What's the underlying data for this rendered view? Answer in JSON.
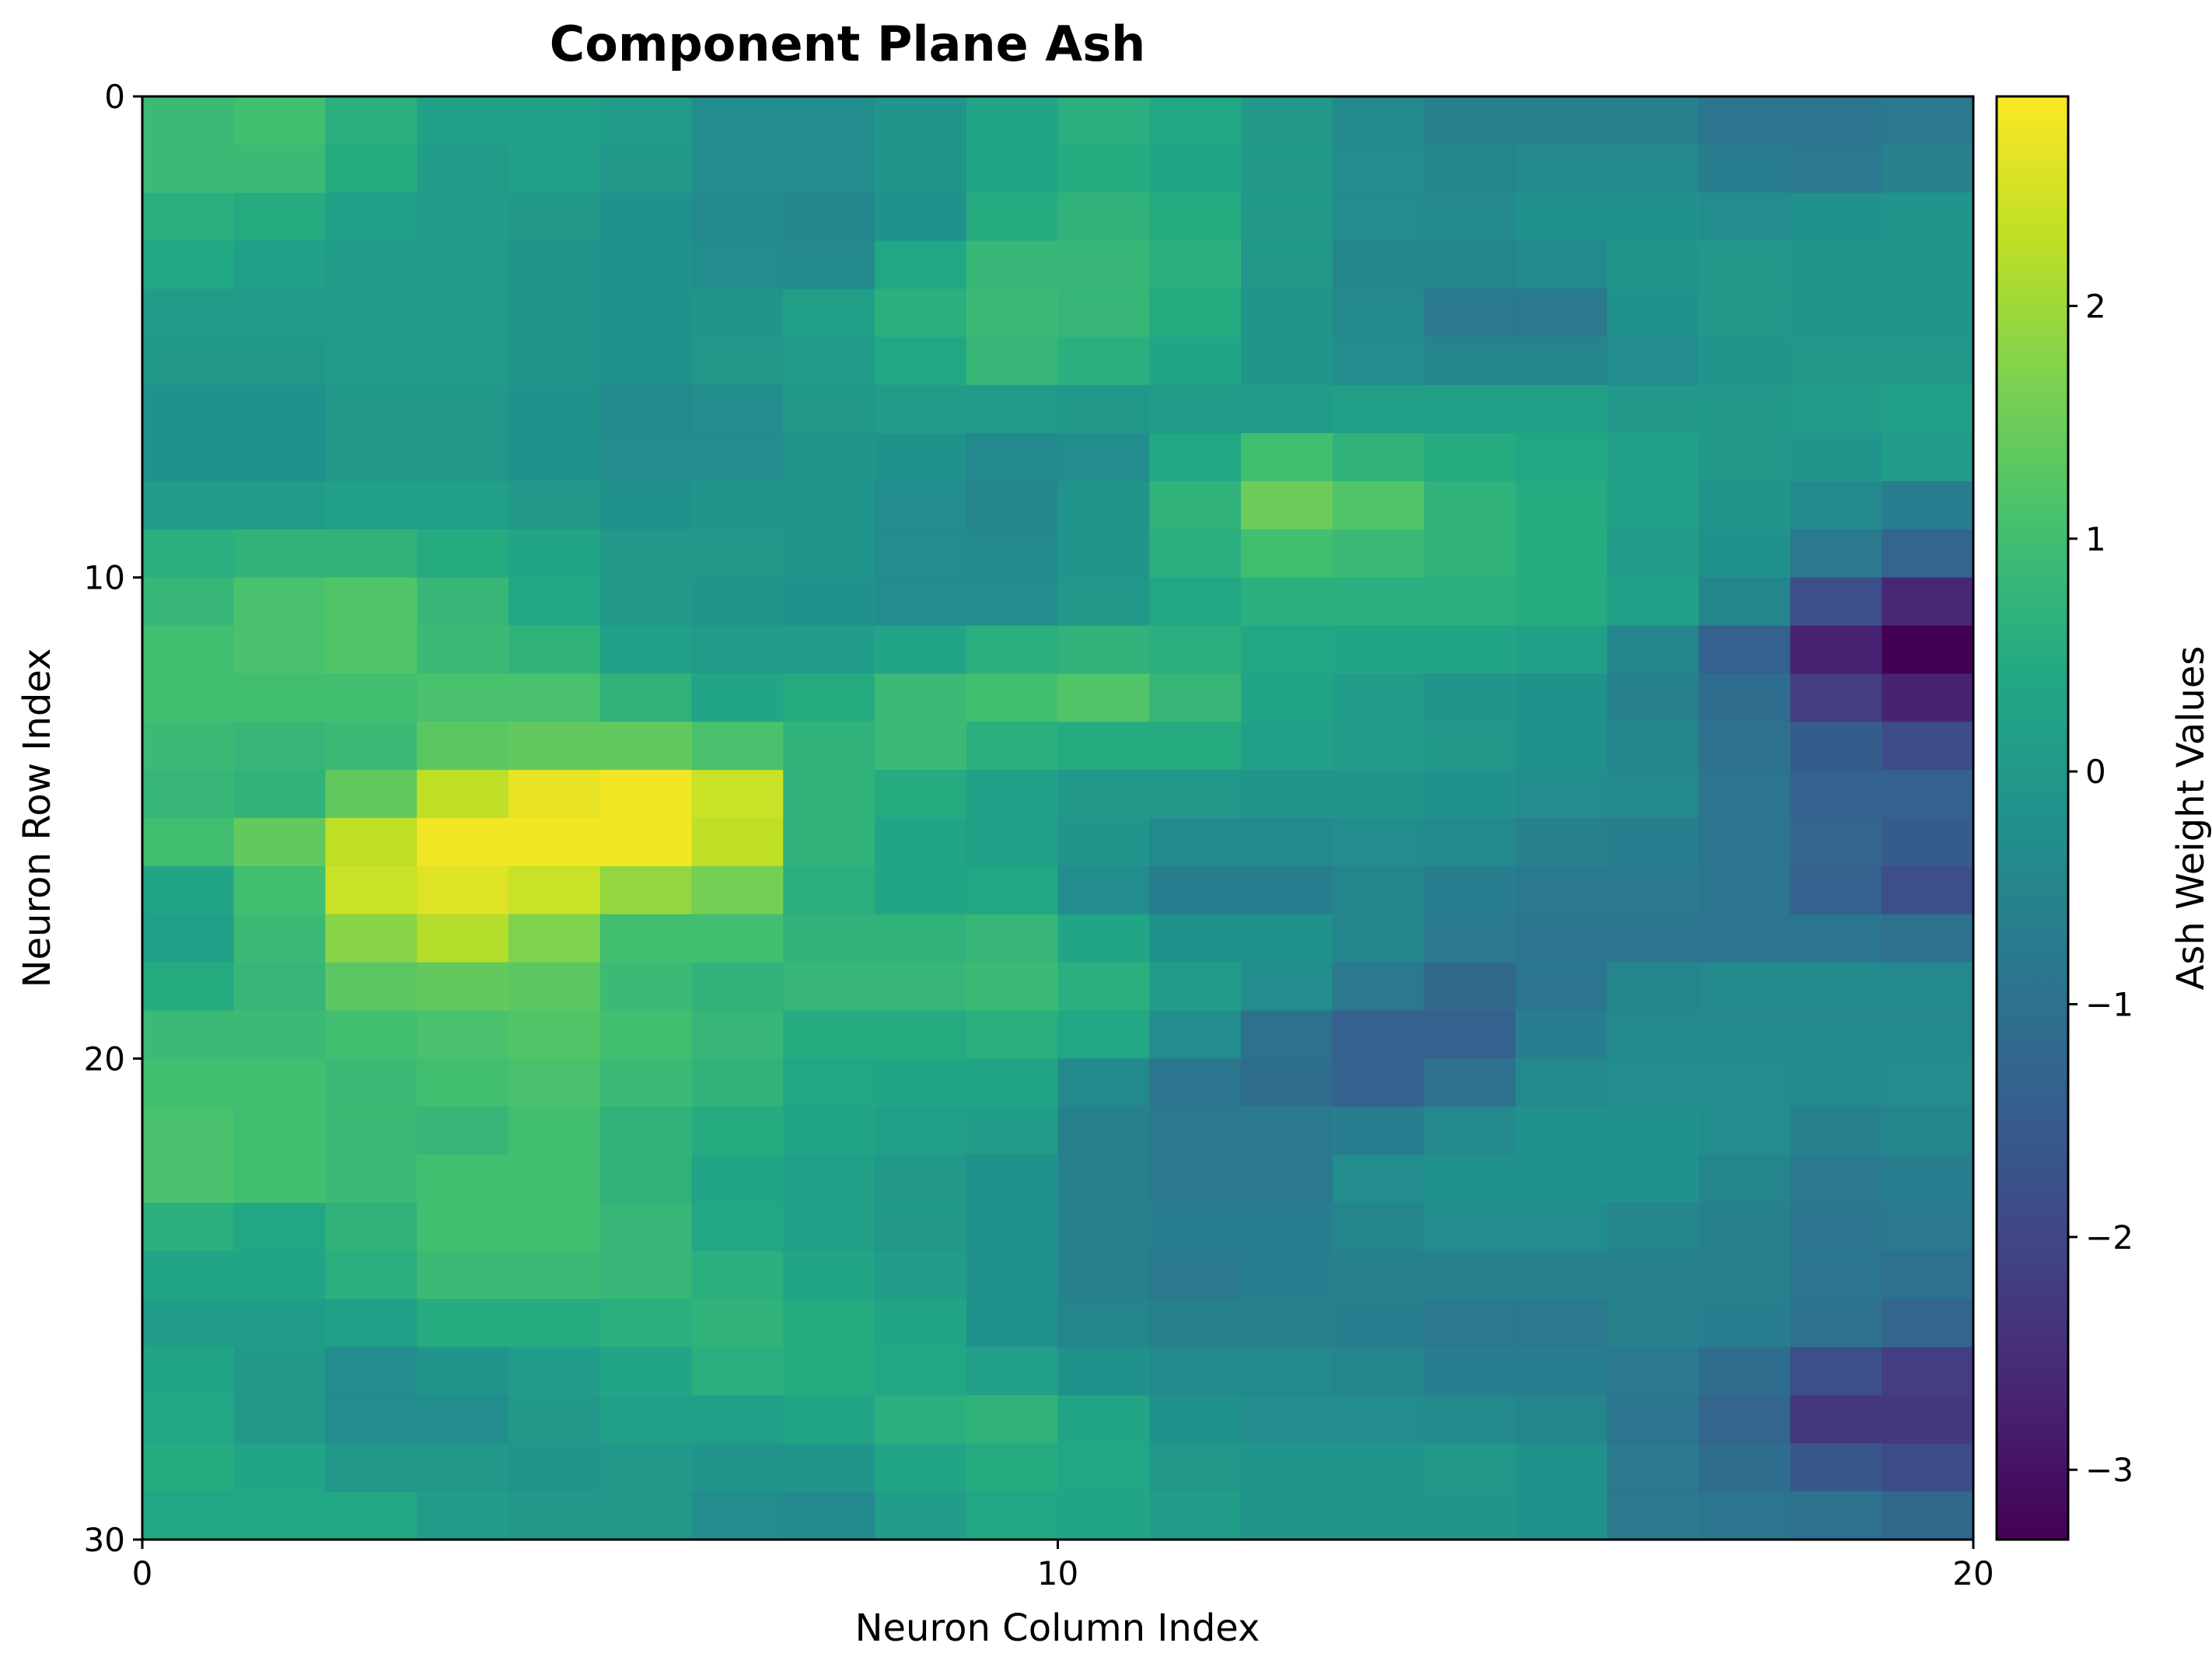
{
  "chart_data": {
    "type": "heatmap",
    "title": "Component Plane Ash",
    "xlabel": "Neuron Column Index",
    "ylabel": "Neuron Row Index",
    "colorbar_label": "Ash Weight Values",
    "colormap": "viridis",
    "xlim": [
      0,
      20
    ],
    "ylim": [
      0,
      30
    ],
    "y_inverted": true,
    "grid": false,
    "x_ticks": [
      "0",
      "10",
      "20"
    ],
    "y_ticks": [
      "0",
      "10",
      "20",
      "30"
    ],
    "colorbar_range": [
      -3.3,
      2.9
    ],
    "colorbar_ticks": [
      "2",
      "1",
      "0",
      "−1",
      "−2",
      "−3"
    ],
    "values": [
      [
        0.9,
        1.0,
        0.6,
        0.2,
        0.2,
        0.1,
        -0.3,
        -0.3,
        -0.1,
        0.3,
        0.6,
        0.4,
        0.0,
        -0.4,
        -0.6,
        -0.6,
        -0.6,
        -0.9,
        -0.9,
        -0.8
      ],
      [
        0.9,
        0.9,
        0.5,
        0.1,
        0.2,
        0.0,
        -0.3,
        -0.3,
        -0.1,
        0.3,
        0.5,
        0.3,
        0.0,
        -0.3,
        -0.5,
        -0.4,
        -0.4,
        -0.7,
        -0.8,
        -0.6
      ],
      [
        0.6,
        0.5,
        0.2,
        0.1,
        0.0,
        -0.2,
        -0.4,
        -0.5,
        -0.2,
        0.5,
        0.7,
        0.5,
        0.0,
        -0.3,
        -0.4,
        -0.2,
        -0.2,
        -0.3,
        -0.2,
        -0.1
      ],
      [
        0.4,
        0.2,
        0.1,
        0.1,
        -0.1,
        -0.2,
        -0.3,
        -0.4,
        0.4,
        0.8,
        0.8,
        0.6,
        0.0,
        -0.5,
        -0.5,
        -0.4,
        -0.1,
        0.0,
        -0.1,
        -0.1
      ],
      [
        0.1,
        0.1,
        0.1,
        0.1,
        -0.1,
        -0.2,
        -0.1,
        0.2,
        0.6,
        0.9,
        0.8,
        0.5,
        -0.1,
        -0.4,
        -0.8,
        -0.8,
        -0.2,
        0.0,
        -0.1,
        -0.1
      ],
      [
        0.0,
        0.0,
        0.1,
        0.1,
        -0.1,
        -0.2,
        0.0,
        0.1,
        0.4,
        0.8,
        0.6,
        0.3,
        -0.1,
        -0.3,
        -0.5,
        -0.5,
        -0.3,
        -0.1,
        0.0,
        0.0
      ],
      [
        -0.2,
        -0.2,
        0.0,
        0.0,
        -0.2,
        -0.4,
        -0.3,
        0.0,
        0.1,
        0.1,
        0.0,
        0.1,
        0.1,
        0.2,
        0.2,
        0.2,
        0.0,
        0.0,
        0.1,
        0.2
      ],
      [
        -0.2,
        -0.2,
        0.0,
        0.0,
        -0.2,
        -0.3,
        -0.3,
        -0.1,
        -0.2,
        -0.4,
        -0.3,
        0.4,
        1.0,
        0.7,
        0.5,
        0.4,
        0.2,
        0.0,
        -0.1,
        0.1
      ],
      [
        0.1,
        0.1,
        0.2,
        0.2,
        0.0,
        -0.2,
        -0.1,
        -0.1,
        -0.3,
        -0.5,
        -0.1,
        0.7,
        1.5,
        1.2,
        0.7,
        0.5,
        0.2,
        -0.1,
        -0.4,
        -0.7
      ],
      [
        0.6,
        0.7,
        0.7,
        0.5,
        0.3,
        0.0,
        0.0,
        -0.1,
        -0.3,
        -0.4,
        -0.1,
        0.6,
        1.0,
        0.9,
        0.7,
        0.5,
        0.1,
        -0.2,
        -0.8,
        -1.3
      ],
      [
        0.8,
        1.1,
        1.2,
        0.8,
        0.4,
        0.0,
        -0.1,
        -0.2,
        -0.3,
        -0.3,
        0.0,
        0.4,
        0.6,
        0.6,
        0.6,
        0.5,
        0.2,
        -0.5,
        -1.8,
        -2.6
      ],
      [
        1.0,
        1.1,
        1.2,
        0.9,
        0.7,
        0.2,
        0.1,
        0.1,
        0.3,
        0.6,
        0.7,
        0.6,
        0.4,
        0.3,
        0.3,
        0.2,
        -0.5,
        -1.4,
        -2.7,
        -3.3
      ],
      [
        1.0,
        1.0,
        1.0,
        1.1,
        1.1,
        0.7,
        0.3,
        0.5,
        0.9,
        1.0,
        1.2,
        0.8,
        0.3,
        0.1,
        -0.1,
        -0.2,
        -0.6,
        -1.1,
        -2.2,
        -2.7
      ],
      [
        0.9,
        0.8,
        0.9,
        1.3,
        1.4,
        1.4,
        1.1,
        0.7,
        0.9,
        0.6,
        0.5,
        0.5,
        0.2,
        0.1,
        0.0,
        -0.2,
        -0.5,
        -1.0,
        -1.5,
        -1.9
      ],
      [
        0.8,
        0.7,
        1.4,
        2.3,
        2.7,
        2.8,
        2.4,
        0.7,
        0.5,
        0.2,
        0.0,
        0.0,
        -0.1,
        -0.1,
        -0.2,
        -0.3,
        -0.4,
        -0.9,
        -1.4,
        -1.4
      ],
      [
        1.0,
        1.4,
        2.3,
        2.8,
        2.8,
        2.8,
        2.3,
        0.7,
        0.3,
        0.2,
        -0.1,
        -0.4,
        -0.4,
        -0.3,
        -0.4,
        -0.6,
        -0.7,
        -0.9,
        -1.3,
        -1.5
      ],
      [
        0.3,
        1.0,
        2.4,
        2.6,
        2.4,
        1.9,
        1.6,
        0.6,
        0.3,
        0.4,
        -0.3,
        -0.7,
        -0.7,
        -0.5,
        -0.7,
        -0.8,
        -0.8,
        -0.9,
        -1.4,
        -1.8
      ],
      [
        0.2,
        0.9,
        1.8,
        2.2,
        1.7,
        1.0,
        1.0,
        0.7,
        0.7,
        0.8,
        0.3,
        -0.2,
        -0.2,
        -0.5,
        -0.8,
        -0.9,
        -0.9,
        -0.9,
        -0.9,
        -1.0
      ],
      [
        0.5,
        0.8,
        1.3,
        1.4,
        1.3,
        0.9,
        0.7,
        0.8,
        0.8,
        0.9,
        0.6,
        0.1,
        -0.3,
        -0.8,
        -1.2,
        -0.9,
        -0.5,
        -0.4,
        -0.4,
        -0.4
      ],
      [
        0.9,
        0.9,
        1.0,
        1.1,
        1.2,
        1.0,
        0.8,
        0.5,
        0.5,
        0.6,
        0.4,
        -0.3,
        -1.0,
        -1.4,
        -1.4,
        -0.7,
        -0.4,
        -0.4,
        -0.4,
        -0.4
      ],
      [
        1.0,
        1.0,
        0.9,
        1.0,
        1.1,
        0.9,
        0.7,
        0.4,
        0.3,
        0.3,
        -0.4,
        -0.9,
        -1.1,
        -1.4,
        -1.0,
        -0.4,
        -0.3,
        -0.3,
        -0.4,
        -0.3
      ],
      [
        1.1,
        1.0,
        0.9,
        0.8,
        1.0,
        0.7,
        0.5,
        0.3,
        0.2,
        0.1,
        -0.6,
        -0.8,
        -0.8,
        -0.7,
        -0.4,
        -0.2,
        -0.2,
        -0.3,
        -0.6,
        -0.5
      ],
      [
        1.1,
        1.0,
        0.9,
        1.0,
        1.0,
        0.7,
        0.3,
        0.2,
        0.0,
        -0.2,
        -0.6,
        -0.8,
        -0.8,
        -0.3,
        -0.2,
        -0.2,
        -0.2,
        -0.5,
        -0.8,
        -0.7
      ],
      [
        0.6,
        0.4,
        0.7,
        1.0,
        1.0,
        0.8,
        0.4,
        0.2,
        0.0,
        -0.2,
        -0.6,
        -0.7,
        -0.7,
        -0.5,
        -0.3,
        -0.3,
        -0.5,
        -0.6,
        -0.9,
        -0.8
      ],
      [
        0.3,
        0.3,
        0.6,
        0.9,
        0.9,
        0.8,
        0.6,
        0.3,
        0.1,
        -0.2,
        -0.6,
        -0.8,
        -0.7,
        -0.6,
        -0.6,
        -0.6,
        -0.6,
        -0.6,
        -0.9,
        -1.0
      ],
      [
        0.1,
        0.1,
        0.2,
        0.5,
        0.5,
        0.6,
        0.7,
        0.5,
        0.3,
        -0.2,
        -0.5,
        -0.6,
        -0.6,
        -0.7,
        -0.8,
        -0.8,
        -0.6,
        -0.7,
        -1.0,
        -1.3
      ],
      [
        0.3,
        0.0,
        -0.3,
        -0.1,
        0.1,
        0.3,
        0.6,
        0.5,
        0.4,
        0.2,
        -0.2,
        -0.4,
        -0.4,
        -0.5,
        -0.7,
        -0.7,
        -0.8,
        -1.1,
        -1.8,
        -2.2
      ],
      [
        0.4,
        0.0,
        -0.3,
        -0.3,
        0.0,
        0.2,
        0.2,
        0.3,
        0.6,
        0.7,
        0.3,
        -0.2,
        -0.3,
        -0.3,
        -0.4,
        -0.5,
        -0.9,
        -1.3,
        -2.3,
        -2.3
      ],
      [
        0.5,
        0.3,
        0.0,
        0.0,
        -0.1,
        0.0,
        -0.1,
        -0.1,
        0.3,
        0.5,
        0.4,
        0.0,
        -0.1,
        -0.1,
        0.0,
        -0.2,
        -0.8,
        -1.1,
        -1.6,
        -1.9
      ],
      [
        0.4,
        0.4,
        0.4,
        0.1,
        0.0,
        0.0,
        -0.3,
        -0.4,
        0.1,
        0.4,
        0.3,
        0.1,
        -0.1,
        -0.1,
        -0.1,
        -0.2,
        -0.8,
        -0.9,
        -1.0,
        -1.2
      ]
    ]
  }
}
